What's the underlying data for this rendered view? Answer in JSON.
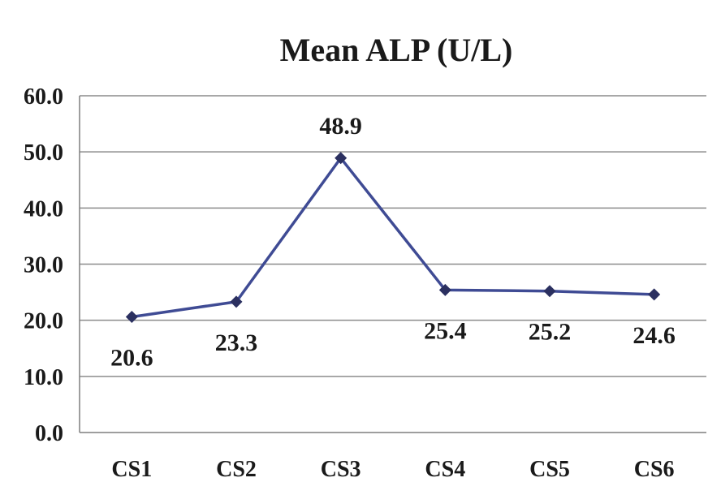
{
  "chart_data": {
    "type": "line",
    "title": "Mean ALP (U/L)",
    "xlabel": "",
    "ylabel": "",
    "categories": [
      "CS1",
      "CS2",
      "CS3",
      "CS4",
      "CS5",
      "CS6"
    ],
    "series": [
      {
        "values": [
          20.6,
          23.3,
          48.9,
          25.4,
          25.2,
          24.6
        ],
        "color": "#3f4b94"
      }
    ],
    "data_labels": [
      "20.6",
      "23.3",
      "48.9",
      "25.4",
      "25.2",
      "24.6"
    ],
    "y_ticks": [
      "0.0",
      "10.0",
      "20.0",
      "30.0",
      "40.0",
      "50.0",
      "60.0"
    ],
    "ylim": [
      0,
      60
    ],
    "grid": true,
    "legend": "none",
    "marker": "diamond",
    "marker_color": "#2b3060"
  }
}
